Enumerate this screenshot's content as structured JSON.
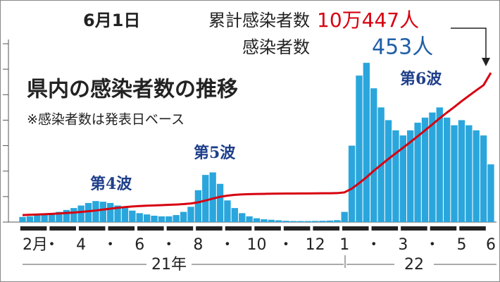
{
  "chart_data": {
    "type": "bar-line",
    "title": "県内の感染者数の推移",
    "subtitle": "※感染者数は発表日ベース",
    "header": {
      "date": "6月1日",
      "cumulative_label": "累計感染者数",
      "cumulative_value": "10万447人",
      "daily_label": "感染者数",
      "daily_value": "453人"
    },
    "annotations": [
      "第4波",
      "第5波",
      "第6波"
    ],
    "years": [
      "21年",
      "22"
    ],
    "categories": [
      "2月",
      null,
      null,
      null,
      "・",
      null,
      null,
      null,
      "4",
      null,
      null,
      null,
      "・",
      null,
      null,
      null,
      "6",
      null,
      null,
      null,
      "・",
      null,
      null,
      null,
      "8",
      null,
      null,
      null,
      "・",
      null,
      null,
      null,
      "10",
      null,
      null,
      null,
      "・",
      null,
      null,
      null,
      "12",
      null,
      null,
      null,
      "1",
      null,
      null,
      null,
      "・",
      null,
      null,
      null,
      "3",
      null,
      null,
      null,
      "・",
      null,
      null,
      null,
      "5",
      null,
      null,
      null,
      "6"
    ],
    "series": [
      {
        "name": "感染者数",
        "color": "#2aa6dc",
        "values": [
          40,
          45,
          55,
          60,
          70,
          80,
          95,
          110,
          130,
          150,
          165,
          160,
          150,
          130,
          110,
          90,
          70,
          60,
          50,
          45,
          45,
          55,
          80,
          120,
          250,
          370,
          390,
          300,
          170,
          110,
          70,
          45,
          30,
          22,
          18,
          14,
          10,
          8,
          8,
          8,
          9,
          10,
          12,
          15,
          80,
          600,
          1150,
          1250,
          1050,
          900,
          800,
          720,
          680,
          720,
          780,
          820,
          860,
          900,
          820,
          760,
          800,
          760,
          720,
          680,
          453
        ]
      },
      {
        "name": "累計感染者数",
        "color": "#d7000f",
        "axis": "y2",
        "values": [
          4700,
          4900,
          5100,
          5300,
          5500,
          5800,
          6100,
          6400,
          6800,
          7300,
          7800,
          8400,
          9000,
          9600,
          10100,
          10500,
          10800,
          11000,
          11200,
          11400,
          11600,
          11800,
          12100,
          12500,
          13300,
          14500,
          15800,
          17000,
          17800,
          18300,
          18600,
          18800,
          18900,
          19000,
          19100,
          19150,
          19200,
          19230,
          19260,
          19290,
          19320,
          19360,
          19410,
          19480,
          20000,
          22500,
          26200,
          30100,
          34500,
          38500,
          42500,
          46300,
          50000,
          53800,
          57700,
          61700,
          65700,
          69800,
          73700,
          77400,
          81300,
          85000,
          88600,
          92100,
          100447
        ]
      }
    ],
    "ylim": [
      0,
      1400
    ],
    "yticks": [
      0,
      200,
      400,
      600,
      800,
      1000,
      1200,
      1400
    ],
    "y2lim": [
      0,
      120000
    ]
  }
}
